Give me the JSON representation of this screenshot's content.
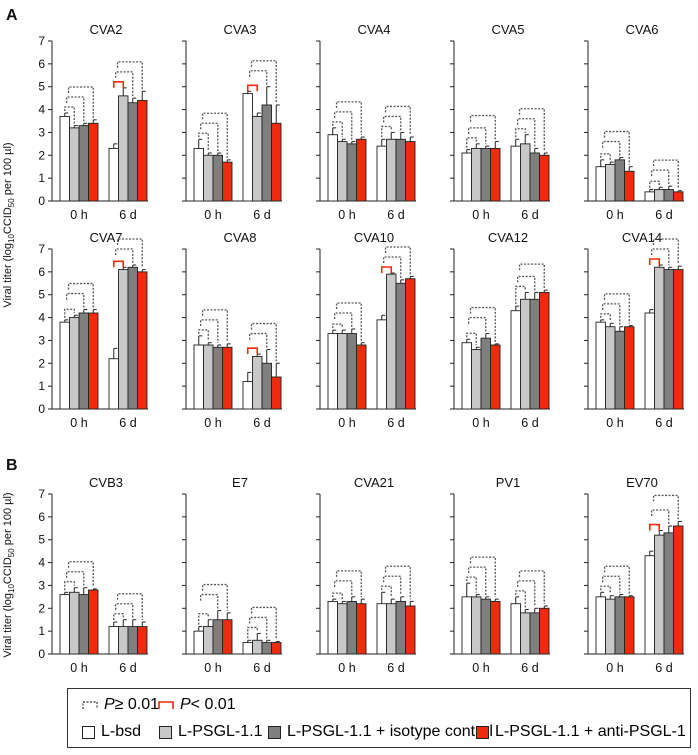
{
  "figure": {
    "panel_labels": [
      "A",
      "B"
    ],
    "ylabel_main": "Viral titer (log",
    "ylabel_sub": "10",
    "ylabel_tail": "CCID",
    "ylabel_sub2": "50",
    "ylabel_end": " per 100 µl)",
    "yticks": [
      "0",
      "1",
      "2",
      "3",
      "4",
      "5",
      "6",
      "7"
    ]
  },
  "legend": {
    "ns_label_p": "P",
    "ns_label_rest": " ≥ 0.01",
    "sig_label_p": "P",
    "sig_label_rest": " < 0.01",
    "series_labels": [
      "L-bsd",
      "L-PSGL-1.1",
      "L-PSGL-1.1 + isotype control",
      "L-PSGL-1.1 + anti-PSGL-1"
    ],
    "series_colors": [
      "#ffffff",
      "#c8c8c8",
      "#7f7f7f",
      "#ee2a0f"
    ],
    "ns_color": "#555555",
    "sig_color": "#ee2a0f"
  },
  "chart_data": [
    {
      "type": "bar",
      "panel": "A",
      "title": "CVA2",
      "categories": [
        "0 h",
        "6 d"
      ],
      "ylim": [
        0,
        7
      ],
      "series": [
        {
          "name": "L-bsd",
          "values": [
            3.7,
            2.3
          ]
        },
        {
          "name": "L-PSGL-1.1",
          "values": [
            3.2,
            4.6
          ]
        },
        {
          "name": "L-PSGL-1.1 + isotype control",
          "values": [
            3.3,
            4.3
          ]
        },
        {
          "name": "L-PSGL-1.1 + anti-PSGL-1",
          "values": [
            3.4,
            4.4
          ]
        }
      ],
      "errors": [
        [
          0.15,
          0.2
        ],
        [
          0.1,
          0.35
        ],
        [
          0.1,
          0.2
        ],
        [
          0.15,
          0.4
        ]
      ],
      "significant": [
        null,
        "bsd-vs-psgl"
      ]
    },
    {
      "type": "bar",
      "panel": "A",
      "title": "CVA3",
      "categories": [
        "0 h",
        "6 d"
      ],
      "ylim": [
        0,
        7
      ],
      "series": [
        {
          "name": "L-bsd",
          "values": [
            2.3,
            4.7
          ]
        },
        {
          "name": "L-PSGL-1.1",
          "values": [
            2.0,
            3.7
          ]
        },
        {
          "name": "L-PSGL-1.1 + isotype control",
          "values": [
            2.0,
            4.2
          ]
        },
        {
          "name": "L-PSGL-1.1 + anti-PSGL-1",
          "values": [
            1.7,
            3.4
          ]
        }
      ],
      "errors": [
        [
          0.4,
          0.1
        ],
        [
          0.1,
          0.15
        ],
        [
          0.1,
          0.8
        ],
        [
          0.1,
          0.8
        ]
      ],
      "significant": [
        null,
        "bsd-vs-psgl"
      ]
    },
    {
      "type": "bar",
      "panel": "A",
      "title": "CVA4",
      "categories": [
        "0 h",
        "6 d"
      ],
      "ylim": [
        0,
        7
      ],
      "series": [
        {
          "name": "L-bsd",
          "values": [
            2.9,
            2.4
          ]
        },
        {
          "name": "L-PSGL-1.1",
          "values": [
            2.6,
            2.7
          ]
        },
        {
          "name": "L-PSGL-1.1 + isotype control",
          "values": [
            2.5,
            2.7
          ]
        },
        {
          "name": "L-PSGL-1.1 + anti-PSGL-1",
          "values": [
            2.7,
            2.6
          ]
        }
      ],
      "errors": [
        [
          0.3,
          0.3
        ],
        [
          0.1,
          0.3
        ],
        [
          0.1,
          0.3
        ],
        [
          0.1,
          0.2
        ]
      ],
      "significant": [
        null,
        null
      ]
    },
    {
      "type": "bar",
      "panel": "A",
      "title": "CVA5",
      "categories": [
        "0 h",
        "6 d"
      ],
      "ylim": [
        0,
        7
      ],
      "series": [
        {
          "name": "L-bsd",
          "values": [
            2.1,
            2.4
          ]
        },
        {
          "name": "L-PSGL-1.1",
          "values": [
            2.3,
            2.5
          ]
        },
        {
          "name": "L-PSGL-1.1 + isotype control",
          "values": [
            2.3,
            2.1
          ]
        },
        {
          "name": "L-PSGL-1.1 + anti-PSGL-1",
          "values": [
            2.3,
            2.0
          ]
        }
      ],
      "errors": [
        [
          0.15,
          0.3
        ],
        [
          0.2,
          0.4
        ],
        [
          0.1,
          0.2
        ],
        [
          0.3,
          0.1
        ]
      ],
      "significant": [
        null,
        null
      ]
    },
    {
      "type": "bar",
      "panel": "A",
      "title": "CVA6",
      "categories": [
        "0 h",
        "6 d"
      ],
      "ylim": [
        0,
        7
      ],
      "series": [
        {
          "name": "L-bsd",
          "values": [
            1.5,
            0.4
          ]
        },
        {
          "name": "L-PSGL-1.1",
          "values": [
            1.6,
            0.5
          ]
        },
        {
          "name": "L-PSGL-1.1 + isotype control",
          "values": [
            1.8,
            0.5
          ]
        },
        {
          "name": "L-PSGL-1.1 + anti-PSGL-1",
          "values": [
            1.3,
            0.4
          ]
        }
      ],
      "errors": [
        [
          0.3,
          0.1
        ],
        [
          0.1,
          0.1
        ],
        [
          0.1,
          0.15
        ],
        [
          0.2,
          0.05
        ]
      ],
      "significant": [
        null,
        null
      ]
    },
    {
      "type": "bar",
      "panel": "A",
      "title": "CVA7",
      "categories": [
        "0 h",
        "6 d"
      ],
      "ylim": [
        0,
        7
      ],
      "series": [
        {
          "name": "L-bsd",
          "values": [
            3.8,
            2.2
          ]
        },
        {
          "name": "L-PSGL-1.1",
          "values": [
            4.0,
            6.1
          ]
        },
        {
          "name": "L-PSGL-1.1 + isotype control",
          "values": [
            4.2,
            6.2
          ]
        },
        {
          "name": "L-PSGL-1.1 + anti-PSGL-1",
          "values": [
            4.2,
            6.0
          ]
        }
      ],
      "errors": [
        [
          0.1,
          0.45
        ],
        [
          0.1,
          0.1
        ],
        [
          0.15,
          0.1
        ],
        [
          0.15,
          0.1
        ]
      ],
      "significant": [
        null,
        "bsd-vs-psgl"
      ]
    },
    {
      "type": "bar",
      "panel": "A",
      "title": "CVA8",
      "categories": [
        "0 h",
        "6 d"
      ],
      "ylim": [
        0,
        7
      ],
      "series": [
        {
          "name": "L-bsd",
          "values": [
            2.8,
            1.2
          ]
        },
        {
          "name": "L-PSGL-1.1",
          "values": [
            2.8,
            2.3
          ]
        },
        {
          "name": "L-PSGL-1.1 + isotype control",
          "values": [
            2.7,
            2.0
          ]
        },
        {
          "name": "L-PSGL-1.1 + anti-PSGL-1",
          "values": [
            2.7,
            1.4
          ]
        }
      ],
      "errors": [
        [
          0.4,
          0.4
        ],
        [
          0.1,
          0.1
        ],
        [
          0.1,
          0.6
        ],
        [
          0.15,
          0.6
        ]
      ],
      "significant": [
        null,
        "bsd-vs-psgl"
      ]
    },
    {
      "type": "bar",
      "panel": "A",
      "title": "CVA10",
      "categories": [
        "0 h",
        "6 d"
      ],
      "ylim": [
        0,
        7
      ],
      "series": [
        {
          "name": "L-bsd",
          "values": [
            3.3,
            3.9
          ]
        },
        {
          "name": "L-PSGL-1.1",
          "values": [
            3.3,
            5.9
          ]
        },
        {
          "name": "L-PSGL-1.1 + isotype control",
          "values": [
            3.3,
            5.5
          ]
        },
        {
          "name": "L-PSGL-1.1 + anti-PSGL-1",
          "values": [
            2.8,
            5.7
          ]
        }
      ],
      "errors": [
        [
          0.15,
          0.2
        ],
        [
          0.15,
          0.05
        ],
        [
          0.2,
          0.15
        ],
        [
          0.1,
          0.1
        ]
      ],
      "significant": [
        null,
        "bsd-vs-psgl"
      ]
    },
    {
      "type": "bar",
      "panel": "A",
      "title": "CVA12",
      "categories": [
        "0 h",
        "6 d"
      ],
      "ylim": [
        0,
        7
      ],
      "series": [
        {
          "name": "L-bsd",
          "values": [
            2.9,
            4.3
          ]
        },
        {
          "name": "L-PSGL-1.1",
          "values": [
            2.6,
            4.8
          ]
        },
        {
          "name": "L-PSGL-1.1 + isotype control",
          "values": [
            3.1,
            4.8
          ]
        },
        {
          "name": "L-PSGL-1.1 + anti-PSGL-1",
          "values": [
            2.8,
            5.1
          ]
        }
      ],
      "errors": [
        [
          0.15,
          0.2
        ],
        [
          0.1,
          0.3
        ],
        [
          0.2,
          0.3
        ],
        [
          0.05,
          0.1
        ]
      ],
      "significant": [
        null,
        null
      ]
    },
    {
      "type": "bar",
      "panel": "A",
      "title": "CVA14",
      "categories": [
        "0 h",
        "6 d"
      ],
      "ylim": [
        0,
        7
      ],
      "series": [
        {
          "name": "L-bsd",
          "values": [
            3.8,
            4.2
          ]
        },
        {
          "name": "L-PSGL-1.1",
          "values": [
            3.6,
            6.2
          ]
        },
        {
          "name": "L-PSGL-1.1 + isotype control",
          "values": [
            3.4,
            6.1
          ]
        },
        {
          "name": "L-PSGL-1.1 + anti-PSGL-1",
          "values": [
            3.6,
            6.1
          ]
        }
      ],
      "errors": [
        [
          0.1,
          0.15
        ],
        [
          0.15,
          0.1
        ],
        [
          0.2,
          0.1
        ],
        [
          0.05,
          0.15
        ]
      ],
      "significant": [
        null,
        "bsd-vs-psgl"
      ]
    },
    {
      "type": "bar",
      "panel": "B",
      "title": "CVB3",
      "categories": [
        "0 h",
        "6 d"
      ],
      "ylim": [
        0,
        7
      ],
      "series": [
        {
          "name": "L-bsd",
          "values": [
            2.6,
            1.2
          ]
        },
        {
          "name": "L-PSGL-1.1",
          "values": [
            2.7,
            1.2
          ]
        },
        {
          "name": "L-PSGL-1.1 + isotype control",
          "values": [
            2.6,
            1.2
          ]
        },
        {
          "name": "L-PSGL-1.1 + anti-PSGL-1",
          "values": [
            2.8,
            1.2
          ]
        }
      ],
      "errors": [
        [
          0.1,
          0.2
        ],
        [
          0.2,
          0.3
        ],
        [
          0.3,
          0.3
        ],
        [
          0.05,
          0.2
        ]
      ],
      "significant": [
        null,
        null
      ]
    },
    {
      "type": "bar",
      "panel": "B",
      "title": "E7",
      "categories": [
        "0 h",
        "6 d"
      ],
      "ylim": [
        0,
        7
      ],
      "series": [
        {
          "name": "L-bsd",
          "values": [
            1.0,
            0.5
          ]
        },
        {
          "name": "L-PSGL-1.1",
          "values": [
            1.2,
            0.6
          ]
        },
        {
          "name": "L-PSGL-1.1 + isotype control",
          "values": [
            1.5,
            0.5
          ]
        },
        {
          "name": "L-PSGL-1.1 + anti-PSGL-1",
          "values": [
            1.5,
            0.5
          ]
        }
      ],
      "errors": [
        [
          0.2,
          0.1
        ],
        [
          0.3,
          0.3
        ],
        [
          0.4,
          0.1
        ],
        [
          0.3,
          0.05
        ]
      ],
      "significant": [
        null,
        null
      ]
    },
    {
      "type": "bar",
      "panel": "B",
      "title": "CVA21",
      "categories": [
        "0 h",
        "6 d"
      ],
      "ylim": [
        0,
        7
      ],
      "series": [
        {
          "name": "L-bsd",
          "values": [
            2.3,
            2.2
          ]
        },
        {
          "name": "L-PSGL-1.1",
          "values": [
            2.2,
            2.2
          ]
        },
        {
          "name": "L-PSGL-1.1 + isotype control",
          "values": [
            2.3,
            2.3
          ]
        },
        {
          "name": "L-PSGL-1.1 + anti-PSGL-1",
          "values": [
            2.2,
            2.1
          ]
        }
      ],
      "errors": [
        [
          0.1,
          0.5
        ],
        [
          0.1,
          0.2
        ],
        [
          0.2,
          0.2
        ],
        [
          0.2,
          0.2
        ]
      ],
      "significant": [
        null,
        null
      ]
    },
    {
      "type": "bar",
      "panel": "B",
      "title": "PV1",
      "categories": [
        "0 h",
        "6 d"
      ],
      "ylim": [
        0,
        7
      ],
      "series": [
        {
          "name": "L-bsd",
          "values": [
            2.5,
            2.2
          ]
        },
        {
          "name": "L-PSGL-1.1",
          "values": [
            2.5,
            1.8
          ]
        },
        {
          "name": "L-PSGL-1.1 + isotype control",
          "values": [
            2.4,
            1.8
          ]
        },
        {
          "name": "L-PSGL-1.1 + anti-PSGL-1",
          "values": [
            2.3,
            2.0
          ]
        }
      ],
      "errors": [
        [
          0.6,
          0.3
        ],
        [
          0.1,
          0.15
        ],
        [
          0.1,
          0.2
        ],
        [
          0.1,
          0.1
        ]
      ],
      "significant": [
        null,
        null
      ]
    },
    {
      "type": "bar",
      "panel": "B",
      "title": "EV70",
      "categories": [
        "0 h",
        "6 d"
      ],
      "ylim": [
        0,
        7
      ],
      "series": [
        {
          "name": "L-bsd",
          "values": [
            2.5,
            4.3
          ]
        },
        {
          "name": "L-PSGL-1.1",
          "values": [
            2.4,
            5.2
          ]
        },
        {
          "name": "L-PSGL-1.1 + isotype control",
          "values": [
            2.5,
            5.3
          ]
        },
        {
          "name": "L-PSGL-1.1 + anti-PSGL-1",
          "values": [
            2.5,
            5.6
          ]
        }
      ],
      "errors": [
        [
          0.2,
          0.2
        ],
        [
          0.15,
          0.2
        ],
        [
          0.1,
          0.3
        ],
        [
          0.05,
          0.2
        ]
      ],
      "significant": [
        null,
        "bsd-vs-psgl"
      ]
    }
  ]
}
